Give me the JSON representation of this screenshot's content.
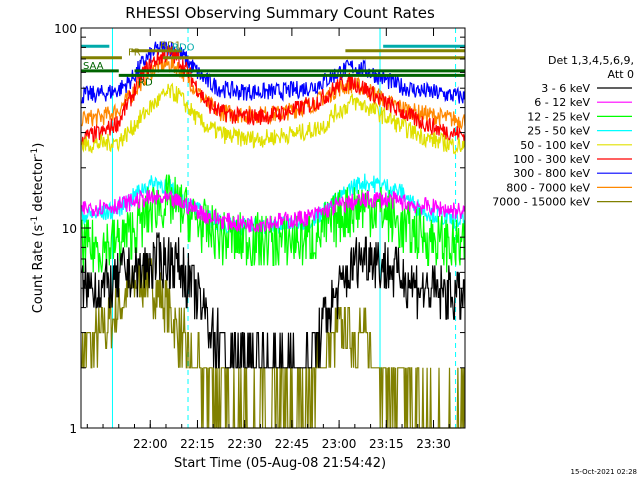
{
  "chart_data": {
    "type": "line",
    "title": "RHESSI Observing Summary Count Rates",
    "xlabel": "Start Time (05-Aug-08 21:54:42)",
    "ylabel_main": "Count Rate (s",
    "ylabel_sup1": "-1",
    "ylabel_mid": " detector",
    "ylabel_sup2": "-1",
    "ylabel_end": ")",
    "yscale": "log",
    "ylim": [
      1,
      100
    ],
    "xlim_minutes": [
      -5,
      32
    ],
    "x_ticks": [
      {
        "label": "22:00",
        "min": 0
      },
      {
        "label": "22:15",
        "min": 15
      },
      {
        "label": "22:30",
        "min": 30
      },
      {
        "label": "22:45",
        "min": 45
      },
      {
        "label": "23:00",
        "min": 60
      },
      {
        "label": "23:15",
        "min": 75
      },
      {
        "label": "23:30",
        "min": 90
      }
    ],
    "y_ticks": [
      {
        "label": "1",
        "value": 1
      },
      {
        "label": "10",
        "value": 10
      },
      {
        "label": "100",
        "value": 100
      }
    ],
    "legend_title": [
      "Det 1,3,4,5,6,9,",
      "Att 0"
    ],
    "legend_placement": "right",
    "series": [
      {
        "name": "3 - 6 keV",
        "color": "#000000",
        "x": [
          -22,
          -15,
          -12,
          -8,
          -6,
          0,
          4,
          8,
          12,
          16,
          20,
          26,
          30,
          34,
          40,
          46,
          50,
          54,
          58,
          62,
          66,
          70,
          74,
          78,
          82,
          86,
          91,
          96,
          100
        ],
        "values": [
          5,
          5.1,
          5,
          6.2,
          5.8,
          6.5,
          7,
          6.8,
          5.5,
          4.2,
          3,
          2.2,
          2.1,
          2.1,
          2.1,
          2.1,
          2.2,
          3,
          4.2,
          5.5,
          7,
          7.5,
          6.5,
          6,
          5.5,
          5,
          4.8,
          4.6,
          4.5
        ]
      },
      {
        "name": "6 - 12 keV",
        "color": "#ff00ff",
        "x": [
          -22,
          -15,
          -10,
          -6,
          -2,
          2,
          6,
          10,
          14,
          18,
          22,
          28,
          34,
          40,
          46,
          52,
          56,
          60,
          64,
          68,
          72,
          76,
          80,
          84,
          88,
          92,
          96,
          100
        ],
        "values": [
          12.5,
          12.8,
          13,
          13.5,
          14,
          14,
          13.8,
          13.3,
          12.5,
          11.5,
          11,
          10.5,
          10.5,
          10.8,
          11,
          11.5,
          12.3,
          13,
          13.4,
          13.7,
          14,
          13.8,
          13.5,
          13,
          12.8,
          12.5,
          12.3,
          12
        ]
      },
      {
        "name": "12 - 25 keV",
        "color": "#00ff00",
        "x": [
          -22,
          -15,
          -10,
          -6,
          -2,
          2,
          6,
          10,
          14,
          18,
          22,
          28,
          34,
          40,
          46,
          52,
          56,
          60,
          64,
          68,
          72,
          76,
          80,
          84,
          88,
          92,
          96,
          100
        ],
        "values": [
          8,
          8.1,
          8.6,
          9.5,
          11,
          13,
          13.5,
          12.5,
          11,
          9.8,
          9,
          8.8,
          8.6,
          8.6,
          8.7,
          9,
          10,
          11.5,
          12.5,
          13,
          12.5,
          11.5,
          10,
          9.5,
          9,
          8.5,
          8.2,
          8
        ]
      },
      {
        "name": "25 - 50 keV",
        "color": "#00ffff",
        "x": [
          -22,
          -15,
          -10,
          -6,
          -2,
          2,
          6,
          10,
          14,
          18,
          22,
          28,
          34,
          40,
          46,
          52,
          56,
          60,
          64,
          68,
          72,
          76,
          80,
          84,
          88,
          92,
          96,
          100
        ],
        "values": [
          11.5,
          11.8,
          12.5,
          14,
          16,
          17,
          16,
          14,
          12.5,
          11.3,
          10.5,
          10.2,
          10.2,
          10.2,
          10.5,
          11,
          12.5,
          14,
          16,
          17,
          16.5,
          16,
          15,
          13,
          12,
          11.5,
          11,
          10.8
        ]
      },
      {
        "name": "50 - 100 keV",
        "color": "#e0e000",
        "x": [
          -22,
          -15,
          -10,
          -7,
          -4,
          0,
          3,
          6,
          9,
          12,
          15,
          18,
          24,
          30,
          36,
          42,
          48,
          52,
          56,
          58,
          62,
          64,
          68,
          72,
          76,
          80,
          84,
          88,
          92,
          96,
          100
        ],
        "values": [
          26,
          26.5,
          27,
          30,
          34,
          40,
          44,
          48,
          46,
          40,
          35,
          32,
          29,
          28,
          28,
          29,
          30,
          31,
          33,
          37,
          40,
          43,
          41,
          38,
          35,
          32,
          30,
          28,
          27,
          26,
          25.5
        ]
      },
      {
        "name": "100 - 300 keV",
        "color": "#ff0000",
        "x": [
          -22,
          -15,
          -10,
          -6,
          -2,
          2,
          6,
          9,
          12,
          15,
          18,
          22,
          28,
          34,
          40,
          46,
          52,
          56,
          60,
          64,
          68,
          72,
          76,
          80,
          84,
          88,
          92,
          96,
          100
        ],
        "values": [
          28,
          30,
          34,
          45,
          60,
          70,
          75,
          70,
          60,
          50,
          42,
          38,
          36,
          36,
          37,
          39,
          42,
          46,
          52,
          54,
          50,
          45,
          41,
          38,
          35,
          33,
          31,
          30,
          29
        ]
      },
      {
        "name": "300 - 800 keV",
        "color": "#0000ff",
        "x": [
          -22,
          -15,
          -10,
          -6,
          -2,
          2,
          6,
          9,
          12,
          15,
          18,
          22,
          28,
          34,
          40,
          46,
          52,
          56,
          60,
          64,
          68,
          72,
          76,
          80,
          84,
          88,
          92,
          96,
          100
        ],
        "values": [
          46,
          47,
          49,
          55,
          68,
          78,
          80,
          76,
          68,
          60,
          54,
          50,
          48,
          48,
          48,
          49,
          51,
          55,
          60,
          64,
          62,
          58,
          54,
          51,
          49,
          48,
          47,
          46,
          45
        ]
      },
      {
        "name": "800 - 7000 keV",
        "color": "#ff8800",
        "x": [
          -22,
          -15,
          -10,
          -6,
          -2,
          2,
          6,
          9,
          12,
          15,
          18,
          22,
          28,
          34,
          40,
          46,
          52,
          56,
          60,
          64,
          68,
          72,
          76,
          80,
          84,
          88,
          92,
          96,
          100
        ],
        "values": [
          35,
          36,
          39,
          46,
          56,
          64,
          66,
          63,
          56,
          48,
          42,
          38,
          37,
          37,
          37,
          39,
          42,
          46,
          50,
          52,
          50,
          46,
          42,
          40,
          38,
          37,
          36,
          35,
          34.5
        ]
      },
      {
        "name": "7000 - 15000 keV",
        "color": "#808000",
        "x": [
          -22,
          -15,
          -12,
          -9,
          -6,
          -3,
          0,
          3,
          6,
          9,
          12,
          15,
          18,
          22,
          28,
          34,
          40,
          46,
          50,
          54,
          57,
          60,
          64,
          68,
          71,
          74,
          78,
          82,
          86,
          91,
          96,
          100
        ],
        "values": [
          2.5,
          2.8,
          3.5,
          4.2,
          5,
          5.6,
          5.4,
          4.6,
          3.8,
          3,
          2.4,
          2,
          1.6,
          1.4,
          1.3,
          1.3,
          1.3,
          1.3,
          1.5,
          2,
          2.6,
          3,
          3,
          2.8,
          2.3,
          1.9,
          1.6,
          1.4,
          1.3,
          1.3,
          1.2,
          1.2
        ]
      }
    ],
    "flag_bars": [
      {
        "label": "FR",
        "color": "#808000",
        "segments": [
          {
            "y": 71,
            "x0": -22,
            "x1": -9
          },
          {
            "y": 71,
            "x0": 4,
            "x1": 100
          }
        ]
      },
      {
        "label": "RD1",
        "color": "#808000",
        "segments": [
          {
            "y": 77,
            "x0": -6,
            "x1": 10
          },
          {
            "y": 77,
            "x0": 62,
            "x1": 100
          }
        ]
      },
      {
        "label": "SAA",
        "color": "#006400",
        "segments": [
          {
            "y": 61,
            "x0": -22,
            "x1": -10
          },
          {
            "y": 61,
            "x0": -5,
            "x1": 100
          }
        ]
      },
      {
        "label": "RD",
        "color": "#006400",
        "segments": [
          {
            "y": 58,
            "x0": -10,
            "x1": 100
          }
        ]
      },
      {
        "label": "RDO",
        "color": "#00aaaa",
        "segments": [
          {
            "y": 81,
            "x0": -22,
            "x1": -13
          },
          {
            "y": 81,
            "x0": 74,
            "x1": 100
          }
        ]
      }
    ],
    "vlines": [
      {
        "min": -22,
        "style": "solid",
        "color": "#00ffff"
      },
      {
        "min": -12,
        "style": "solid",
        "color": "#00ffff"
      },
      {
        "min": 12,
        "style": "dashed",
        "color": "#00ffff"
      },
      {
        "min": 73,
        "style": "solid",
        "color": "#00ffff"
      },
      {
        "min": 97,
        "style": "dashed",
        "color": "#00ffff"
      }
    ]
  },
  "timestamp": "15-Oct-2021 02:28"
}
